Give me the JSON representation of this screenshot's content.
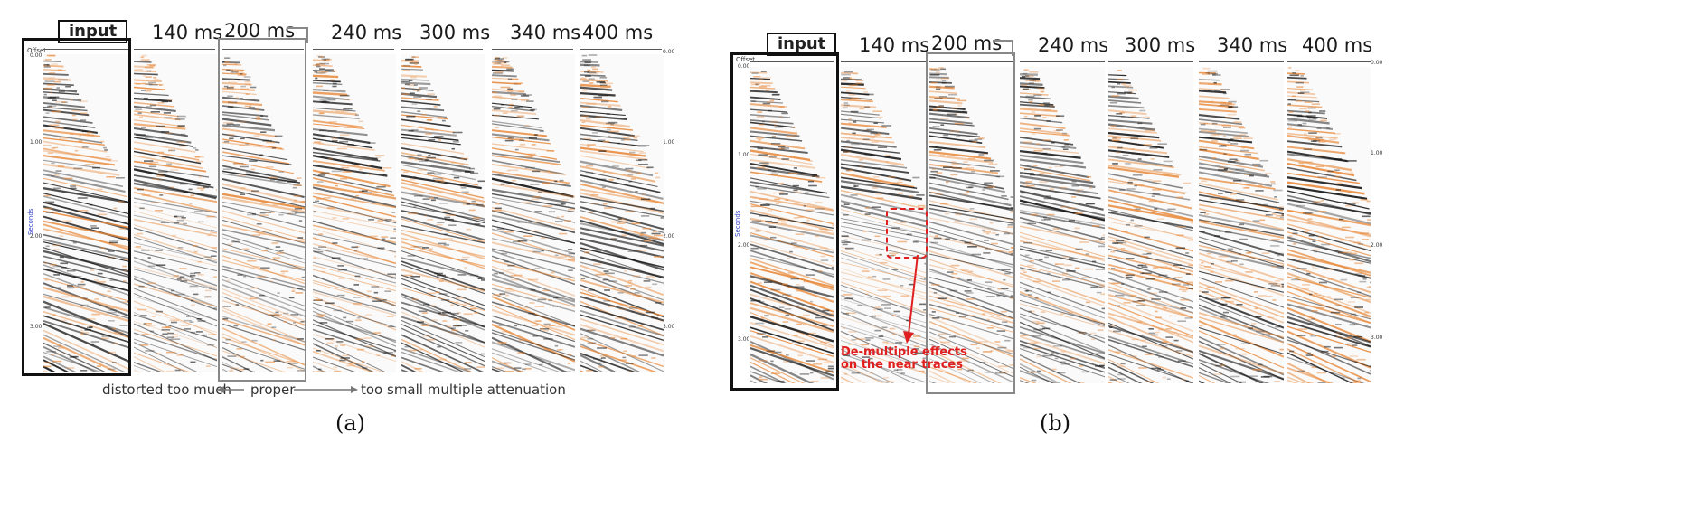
{
  "panel_a": {
    "caption": "(a)",
    "input_label": "input",
    "windows": [
      "140 ms",
      "200 ms",
      "240 ms",
      "300 ms",
      "340 ms",
      "400 ms"
    ],
    "arrow_left": "distorted too much",
    "arrow_mid": "proper",
    "arrow_right": "too small multiple attenuation",
    "offset_label": "Offset",
    "axis_label": "Seconds",
    "time_ticks": [
      "0.00",
      "1.00",
      "2.00",
      "3.00"
    ]
  },
  "panel_b": {
    "caption": "(b)",
    "input_label": "input",
    "windows": [
      "140 ms",
      "200 ms",
      "240 ms",
      "300 ms",
      "340 ms",
      "400 ms"
    ],
    "annotation_line1": "De-multiple effects",
    "annotation_line2": "on the near traces",
    "offset_label": "Offset",
    "axis_label": "Seconds",
    "time_ticks": [
      "0.00",
      "1.00",
      "2.00",
      "3.00"
    ]
  },
  "colors": {
    "wiggle_dark": "#111111",
    "wiggle_fill": "#e8893a",
    "annotation": "#e02020",
    "axis_blue": "#3344cc"
  }
}
